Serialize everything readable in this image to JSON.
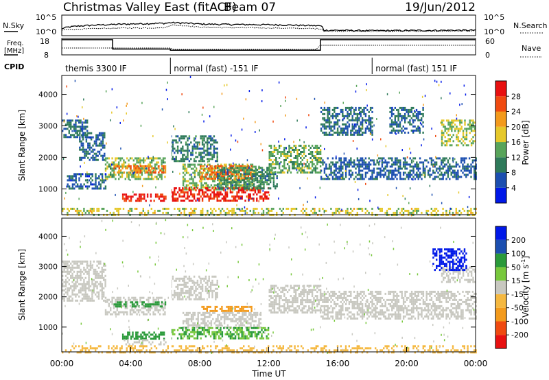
{
  "title": "Christmas Valley East (fitACF)",
  "beam": "Beam 07",
  "date": "19/Jun/2012",
  "colors": {
    "power": [
      "#0018e8",
      "#1c4fb0",
      "#2f7a5a",
      "#58a45a",
      "#e6c82a",
      "#f39a1c",
      "#f04a10",
      "#e81010"
    ],
    "velocity": [
      "#e81010",
      "#f04a10",
      "#f39a1c",
      "#f5b840",
      "#c8c8c0",
      "#78c83c",
      "#2a9a3a",
      "#1c4fb0",
      "#0018e8"
    ]
  },
  "chart_data": [
    {
      "type": "line",
      "name": "summary-nsky-nsearch",
      "ylabel_left": "N.Sky",
      "ylabel_right": "N.Search",
      "left_ticks": [
        "10^5",
        "10^0"
      ],
      "right_ticks": [
        "10^5",
        "10^0"
      ],
      "y_scale": "log",
      "ylim": [
        1,
        100000
      ],
      "x_hours": [
        0,
        3,
        6,
        6.4,
        8,
        10,
        12,
        15,
        15.2,
        18,
        24
      ],
      "series": [
        {
          "values": [
            50,
            700,
            1500,
            2200,
            900,
            700,
            600,
            300,
            20,
            15,
            20
          ]
        },
        {
          "values": [
            20,
            70,
            90,
            500,
            120,
            90,
            80,
            50,
            12,
            10,
            12
          ]
        }
      ]
    },
    {
      "type": "line",
      "name": "summary-freq-nave",
      "ylabel_left": "Freq. [MHz]",
      "ylabel_right": "Nave",
      "left_ticks": [
        "18",
        "8"
      ],
      "right_ticks": [
        "60",
        "0"
      ],
      "freq_mhz": {
        "x_hours": [
          0,
          2.95,
          2.95,
          6.3,
          6.3,
          15.0,
          15.0,
          24
        ],
        "values": [
          17.6,
          17.6,
          11.4,
          11.4,
          10.6,
          10.6,
          17.6,
          17.6
        ]
      }
    },
    {
      "type": "table",
      "name": "cpid",
      "label": "CPID",
      "segments": [
        {
          "text": "themis 3300 IF",
          "start": 0,
          "end": 6.3
        },
        {
          "text": "normal (fast) -151 IF",
          "start": 6.3,
          "end": 18.0
        },
        {
          "text": "normal (fast) 151 IF",
          "start": 18.0,
          "end": 24
        }
      ]
    },
    {
      "type": "heatmap",
      "name": "power-rti",
      "ylabel": "Slant Range [km]",
      "yticks": [
        1000,
        2000,
        3000,
        4000
      ],
      "ylim": [
        180,
        4600
      ],
      "xlim": [
        0,
        24
      ],
      "colorbar": {
        "label": "Power [dB]",
        "ticks": [
          "4",
          "8",
          "12",
          "16",
          "20",
          "24",
          "28"
        ],
        "range": [
          0,
          30
        ]
      },
      "regions": [
        {
          "t": [
            0.0,
            1.5
          ],
          "r": [
            2650,
            3200
          ],
          "v": 8
        },
        {
          "t": [
            1.0,
            2.5
          ],
          "r": [
            1900,
            2800
          ],
          "v": 7
        },
        {
          "t": [
            2.5,
            6.0
          ],
          "r": [
            1300,
            2000
          ],
          "v": 14
        },
        {
          "t": [
            3.0,
            6.0
          ],
          "r": [
            1500,
            1750
          ],
          "v": 22
        },
        {
          "t": [
            3.5,
            6.0
          ],
          "r": [
            600,
            850
          ],
          "v": 27
        },
        {
          "t": [
            0.3,
            2.5
          ],
          "r": [
            1000,
            1500
          ],
          "v": 6
        },
        {
          "t": [
            6.3,
            9.0
          ],
          "r": [
            1900,
            2700
          ],
          "v": 9
        },
        {
          "t": [
            7.0,
            11.5
          ],
          "r": [
            1000,
            1800
          ],
          "v": 14
        },
        {
          "t": [
            8.0,
            11.0
          ],
          "r": [
            1350,
            1750
          ],
          "v": 23
        },
        {
          "t": [
            6.3,
            12.0
          ],
          "r": [
            650,
            1050
          ],
          "v": 27
        },
        {
          "t": [
            9.0,
            12.5
          ],
          "r": [
            1000,
            1700
          ],
          "v": 10
        },
        {
          "t": [
            12.0,
            15.0
          ],
          "r": [
            1500,
            2400
          ],
          "v": 13
        },
        {
          "t": [
            15.0,
            24.0
          ],
          "r": [
            1300,
            2000
          ],
          "v": 7
        },
        {
          "t": [
            15.0,
            18.0
          ],
          "r": [
            2700,
            3600
          ],
          "v": 8
        },
        {
          "t": [
            19.0,
            21.0
          ],
          "r": [
            2800,
            3600
          ],
          "v": 8
        },
        {
          "t": [
            22.0,
            24.0
          ],
          "r": [
            2400,
            3200
          ],
          "v": 15
        },
        {
          "t": [
            0.0,
            24.0
          ],
          "r": [
            180,
            400
          ],
          "v": 16
        }
      ]
    },
    {
      "type": "heatmap",
      "name": "velocity-rti",
      "ylabel": "Slant Range [km]",
      "yticks": [
        1000,
        2000,
        3000,
        4000
      ],
      "ylim": [
        180,
        4600
      ],
      "xlim": [
        0,
        24
      ],
      "xticks": [
        "00:00",
        "04:00",
        "08:00",
        "12:00",
        "16:00",
        "20:00",
        "00:00"
      ],
      "xlabel": "Time UT",
      "colorbar": {
        "label": "Velocity [m s^-1]",
        "ticks": [
          "200",
          "100",
          "50",
          "15",
          "-15",
          "-50",
          "-100",
          "-200"
        ]
      },
      "regions": [
        {
          "t": [
            0.0,
            2.5
          ],
          "r": [
            1900,
            3200
          ],
          "v": 0
        },
        {
          "t": [
            2.5,
            6.0
          ],
          "r": [
            1400,
            2000
          ],
          "v": 10
        },
        {
          "t": [
            3.0,
            6.0
          ],
          "r": [
            1650,
            1850
          ],
          "v": 60
        },
        {
          "t": [
            3.5,
            6.0
          ],
          "r": [
            600,
            850
          ],
          "v": 80
        },
        {
          "t": [
            3.5,
            6.0
          ],
          "r": [
            400,
            600
          ],
          "v": 0
        },
        {
          "t": [
            6.3,
            9.0
          ],
          "r": [
            1900,
            2700
          ],
          "v": 0
        },
        {
          "t": [
            8.0,
            11.0
          ],
          "r": [
            1500,
            1700
          ],
          "v": -60
        },
        {
          "t": [
            7.0,
            11.5
          ],
          "r": [
            1000,
            1500
          ],
          "v": 10
        },
        {
          "t": [
            6.3,
            12.0
          ],
          "r": [
            650,
            1000
          ],
          "v": 50
        },
        {
          "t": [
            12.0,
            15.0
          ],
          "r": [
            1500,
            2400
          ],
          "v": 0
        },
        {
          "t": [
            15.0,
            24.0
          ],
          "r": [
            1300,
            2200
          ],
          "v": 0
        },
        {
          "t": [
            22.0,
            24.0
          ],
          "r": [
            2500,
            3000
          ],
          "v": 0
        },
        {
          "t": [
            21.5,
            23.5
          ],
          "r": [
            2900,
            3600
          ],
          "v": 220
        },
        {
          "t": [
            0.0,
            24.0
          ],
          "r": [
            180,
            400
          ],
          "v": -40
        }
      ]
    }
  ]
}
